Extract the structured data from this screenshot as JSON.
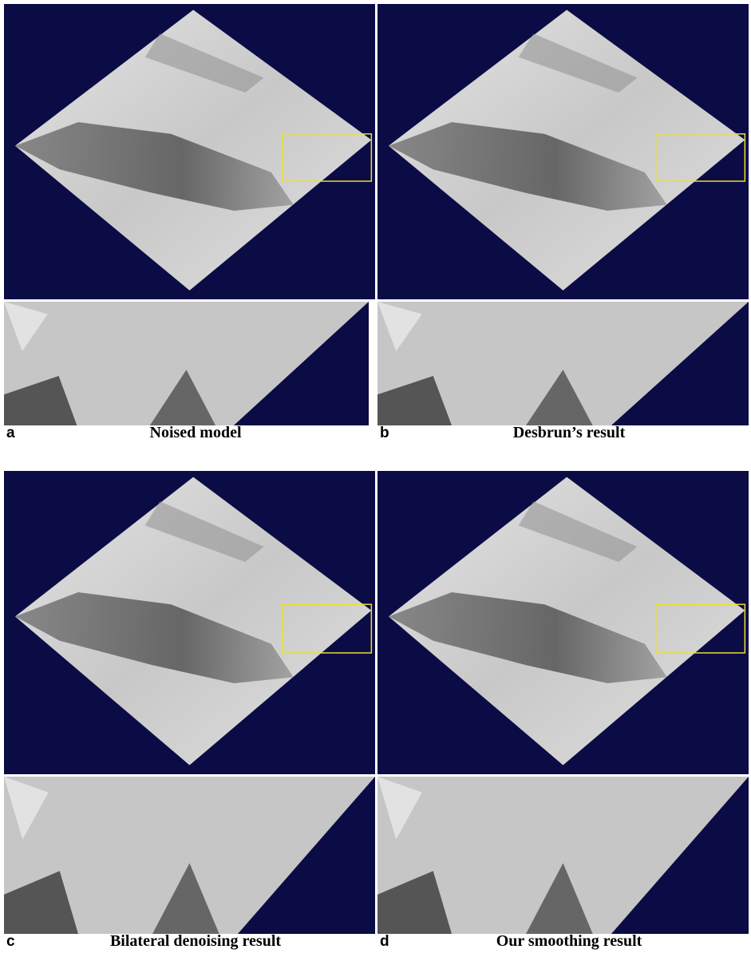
{
  "panels": [
    {
      "letter": "a",
      "caption": "Noised model"
    },
    {
      "letter": "b",
      "caption": "Desbrun’s result"
    },
    {
      "letter": "c",
      "caption": "Bilateral denoising result"
    },
    {
      "letter": "d",
      "caption": "Our smoothing result"
    }
  ]
}
